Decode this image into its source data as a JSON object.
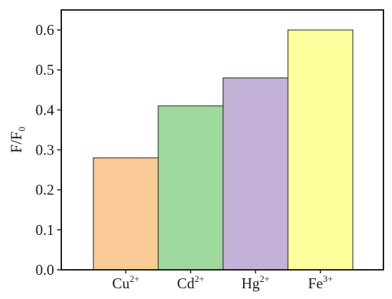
{
  "chart_data": {
    "type": "bar",
    "title": "",
    "xlabel": "",
    "ylabel": "F/F",
    "ylabel_sub": "0",
    "categories": [
      {
        "base": "Cu",
        "sup": "2+"
      },
      {
        "base": "Cd",
        "sup": "2+"
      },
      {
        "base": "Hg",
        "sup": "2+"
      },
      {
        "base": "Fe",
        "sup": "3+"
      }
    ],
    "values": [
      0.28,
      0.41,
      0.48,
      0.6
    ],
    "colors": [
      "#f9c996",
      "#9ed89c",
      "#c3b1d8",
      "#fefe9c"
    ],
    "ylim": [
      0.0,
      0.65
    ],
    "yticks": [
      0.0,
      0.1,
      0.2,
      0.3,
      0.4,
      0.5,
      0.6
    ],
    "ytick_labels": [
      "0.0",
      "0.1",
      "0.2",
      "0.3",
      "0.4",
      "0.5",
      "0.6"
    ],
    "grid": false,
    "legend": "none"
  }
}
